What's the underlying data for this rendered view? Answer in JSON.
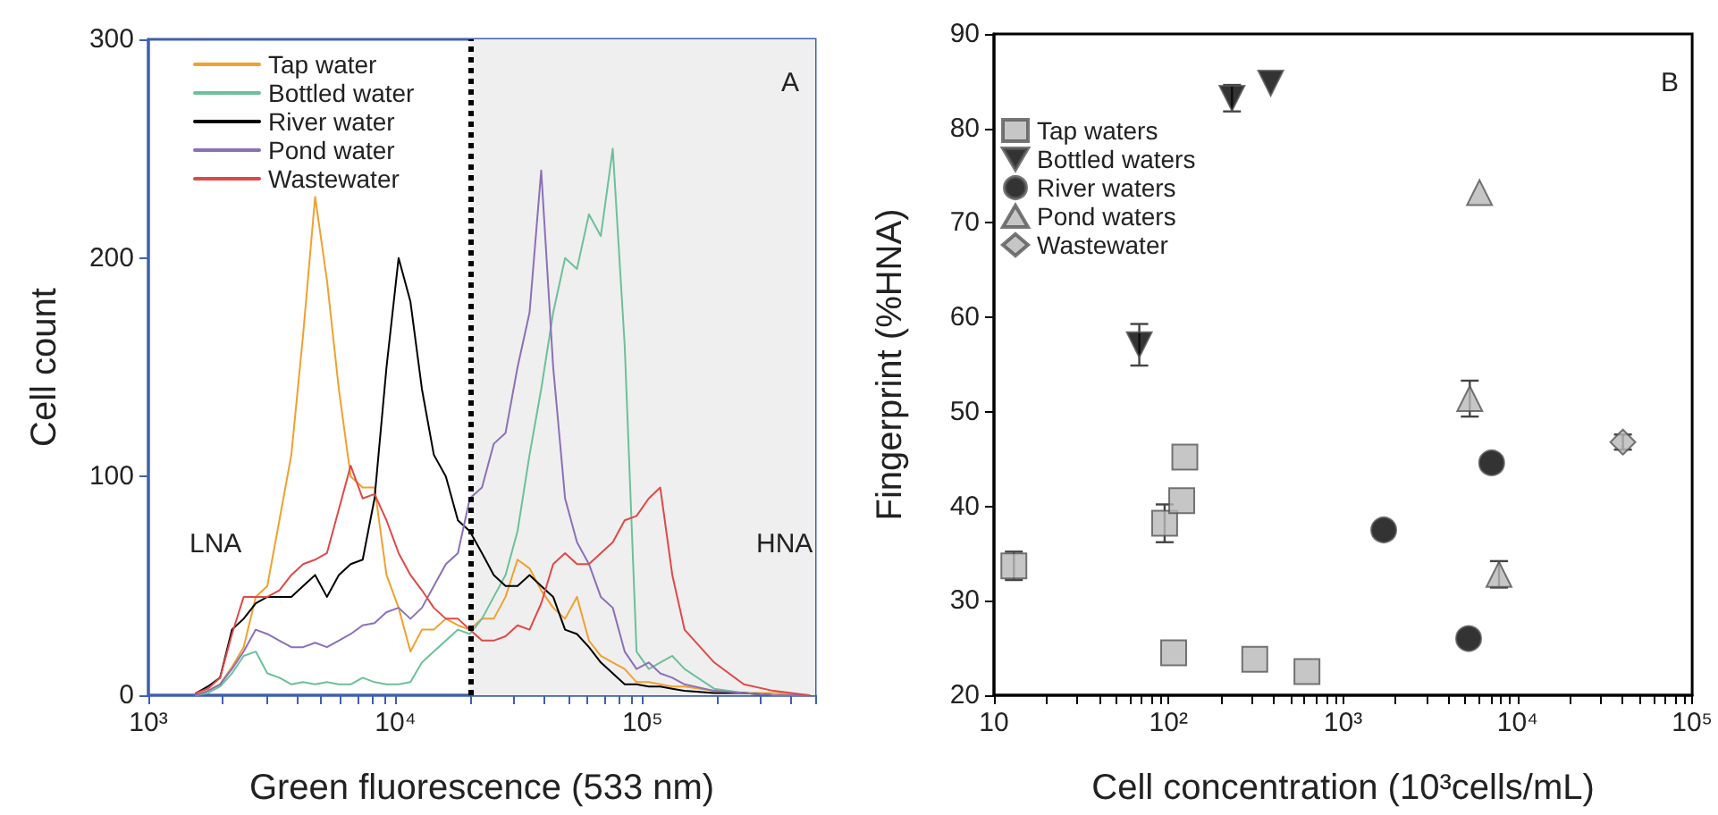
{
  "chart_data": [
    {
      "type": "line",
      "xlabel": "Green fluorescence (533 nm)",
      "ylabel": "Cell count",
      "log": "x",
      "grid": false,
      "legend": "top left",
      "marker": "none",
      "line_style": "solid",
      "xlim": [
        1000,
        500000
      ],
      "ylim": [
        0,
        300
      ],
      "yticks": [
        0,
        100,
        200,
        300
      ],
      "xticks": [
        {
          "value": 1000,
          "label": "10³"
        },
        {
          "value": 2000,
          "label": null
        },
        {
          "value": 3000,
          "label": null
        },
        {
          "value": 4000,
          "label": null
        },
        {
          "value": 5000,
          "label": null
        },
        {
          "value": 6000,
          "label": null
        },
        {
          "value": 7000,
          "label": null
        },
        {
          "value": 8000,
          "label": null
        },
        {
          "value": 9000,
          "label": null
        },
        {
          "value": 10000,
          "label": "10⁴"
        },
        {
          "value": 20000,
          "label": null
        },
        {
          "value": 30000,
          "label": null
        },
        {
          "value": 40000,
          "label": null
        },
        {
          "value": 50000,
          "label": null
        },
        {
          "value": 60000,
          "label": null
        },
        {
          "value": 70000,
          "label": null
        },
        {
          "value": 80000,
          "label": null
        },
        {
          "value": 90000,
          "label": null
        },
        {
          "value": 100000,
          "label": "10⁵"
        },
        {
          "value": 200000,
          "label": null
        },
        {
          "value": 300000,
          "label": null
        },
        {
          "value": 400000,
          "label": null
        },
        {
          "value": 500000,
          "label": null
        }
      ],
      "x": [
        1560,
        1740,
        1950,
        2180,
        2430,
        2720,
        3030,
        3390,
        3790,
        4230,
        4730,
        5280,
        5900,
        6590,
        7370,
        8230,
        9200,
        10300,
        11500,
        12800,
        14300,
        16000,
        17900,
        20000,
        22400,
        25000,
        27900,
        31200,
        34900,
        38900,
        43500,
        48600,
        54300,
        60700,
        67800,
        75800,
        84700,
        94600,
        106000,
        118000,
        132000,
        148000,
        195000,
        257000,
        339000,
        473000
      ],
      "series": [
        {
          "name": "Tap water",
          "color": "#f0a030",
          "values": [
            0,
            2,
            5,
            13,
            22,
            45,
            50,
            80,
            110,
            165,
            228,
            190,
            140,
            100,
            95,
            95,
            55,
            40,
            20,
            30,
            30,
            35,
            32,
            30,
            35,
            35,
            45,
            62,
            58,
            48,
            40,
            35,
            45,
            25,
            18,
            15,
            12,
            6,
            6,
            5,
            4,
            4,
            2,
            1,
            1,
            0
          ]
        },
        {
          "name": "Bottled water",
          "color": "#6cc09a",
          "values": [
            0,
            1,
            4,
            10,
            18,
            20,
            10,
            8,
            5,
            6,
            5,
            6,
            5,
            5,
            8,
            6,
            5,
            5,
            6,
            15,
            20,
            25,
            30,
            28,
            35,
            45,
            55,
            75,
            110,
            140,
            175,
            200,
            195,
            220,
            210,
            250,
            160,
            20,
            12,
            15,
            18,
            12,
            3,
            1,
            0,
            0
          ]
        },
        {
          "name": "River water",
          "color": "#000000",
          "values": [
            1,
            4,
            8,
            30,
            35,
            42,
            45,
            45,
            45,
            50,
            55,
            45,
            55,
            60,
            62,
            90,
            150,
            200,
            180,
            140,
            110,
            100,
            80,
            75,
            65,
            55,
            50,
            50,
            55,
            50,
            45,
            30,
            28,
            22,
            15,
            10,
            5,
            5,
            4,
            4,
            3,
            2,
            1,
            1,
            0,
            0
          ]
        },
        {
          "name": "Pond water",
          "color": "#8a70b8",
          "values": [
            0,
            2,
            5,
            12,
            20,
            30,
            28,
            25,
            22,
            22,
            24,
            22,
            25,
            28,
            32,
            33,
            38,
            40,
            35,
            40,
            50,
            60,
            65,
            90,
            95,
            115,
            120,
            150,
            175,
            240,
            150,
            90,
            70,
            60,
            45,
            40,
            20,
            12,
            15,
            10,
            8,
            5,
            2,
            1,
            0,
            0
          ]
        },
        {
          "name": "Wastewater",
          "color": "#e04848",
          "values": [
            1,
            3,
            8,
            28,
            45,
            45,
            45,
            48,
            55,
            60,
            62,
            65,
            85,
            105,
            90,
            92,
            80,
            65,
            55,
            48,
            40,
            35,
            35,
            30,
            25,
            25,
            27,
            32,
            30,
            42,
            60,
            65,
            60,
            60,
            65,
            70,
            80,
            82,
            90,
            95,
            55,
            30,
            15,
            5,
            2,
            0
          ]
        }
      ],
      "bands": [
        {
          "axis": "x",
          "from": 20000,
          "to": 500000,
          "color": "#efefef"
        }
      ],
      "ref_lines": [
        {
          "axis": "x",
          "value": 20000,
          "color": "#000000",
          "line_style": "dotted"
        }
      ],
      "annotations": [
        "LNA",
        "HNA",
        "A"
      ]
    },
    {
      "type": "scatter",
      "xlabel": "Cell concentration (10³cells/mL)",
      "ylabel": "Fingerprint (%HNA)",
      "log": "x",
      "grid": false,
      "legend": "top left",
      "xlim": [
        10,
        100000
      ],
      "ylim": [
        20,
        90
      ],
      "yticks": [
        20,
        30,
        40,
        50,
        60,
        70,
        80,
        90
      ],
      "xticks": [
        {
          "value": 10,
          "label": "10"
        },
        {
          "value": 20,
          "label": null
        },
        {
          "value": 30,
          "label": null
        },
        {
          "value": 40,
          "label": null
        },
        {
          "value": 50,
          "label": null
        },
        {
          "value": 60,
          "label": null
        },
        {
          "value": 70,
          "label": null
        },
        {
          "value": 80,
          "label": null
        },
        {
          "value": 90,
          "label": null
        },
        {
          "value": 100,
          "label": "10²"
        },
        {
          "value": 200,
          "label": null
        },
        {
          "value": 300,
          "label": null
        },
        {
          "value": 400,
          "label": null
        },
        {
          "value": 500,
          "label": null
        },
        {
          "value": 600,
          "label": null
        },
        {
          "value": 700,
          "label": null
        },
        {
          "value": 800,
          "label": null
        },
        {
          "value": 900,
          "label": null
        },
        {
          "value": 1000,
          "label": "10³"
        },
        {
          "value": 2000,
          "label": null
        },
        {
          "value": 3000,
          "label": null
        },
        {
          "value": 4000,
          "label": null
        },
        {
          "value": 5000,
          "label": null
        },
        {
          "value": 6000,
          "label": null
        },
        {
          "value": 7000,
          "label": null
        },
        {
          "value": 8000,
          "label": null
        },
        {
          "value": 9000,
          "label": null
        },
        {
          "value": 10000,
          "label": "10⁴"
        },
        {
          "value": 20000,
          "label": null
        },
        {
          "value": 30000,
          "label": null
        },
        {
          "value": 40000,
          "label": null
        },
        {
          "value": 50000,
          "label": null
        },
        {
          "value": 60000,
          "label": null
        },
        {
          "value": 70000,
          "label": null
        },
        {
          "value": 80000,
          "label": null
        },
        {
          "value": 90000,
          "label": null
        },
        {
          "value": 100000,
          "label": "10⁵"
        }
      ],
      "series": [
        {
          "name": "Tap waters",
          "color": "#b8b8b8",
          "marker": "square",
          "x": [
            13,
            95,
            119,
            124,
            107,
            312,
            621
          ],
          "values": [
            33.7,
            38.2,
            40.6,
            45.2,
            24.5,
            23.8,
            22.5
          ],
          "errors": [
            1.5,
            2,
            null,
            null,
            null,
            null,
            null
          ]
        },
        {
          "name": "Bottled waters",
          "color": "#000000",
          "marker": "triangle-down",
          "x": [
            68,
            231,
            385
          ],
          "values": [
            57.1,
            83.2,
            84.8
          ],
          "errors": [
            2.2,
            1.4,
            null
          ]
        },
        {
          "name": "River waters",
          "color": "#000000",
          "marker": "circle",
          "x": [
            1710,
            7100,
            5240
          ],
          "values": [
            37.5,
            44.6,
            26.0
          ]
        },
        {
          "name": "Pond waters",
          "color": "#b8b8b8",
          "marker": "triangle",
          "x": [
            6050,
            5320,
            7820
          ],
          "values": [
            73.2,
            51.4,
            32.8
          ],
          "errors": [
            null,
            1.9,
            1.4
          ]
        },
        {
          "name": "Wastewater",
          "color": "#b8b8b8",
          "marker": "diamond",
          "x": [
            40100
          ],
          "values": [
            46.8
          ],
          "errors": [
            0.8
          ]
        }
      ],
      "annotations": [
        "B"
      ]
    }
  ]
}
